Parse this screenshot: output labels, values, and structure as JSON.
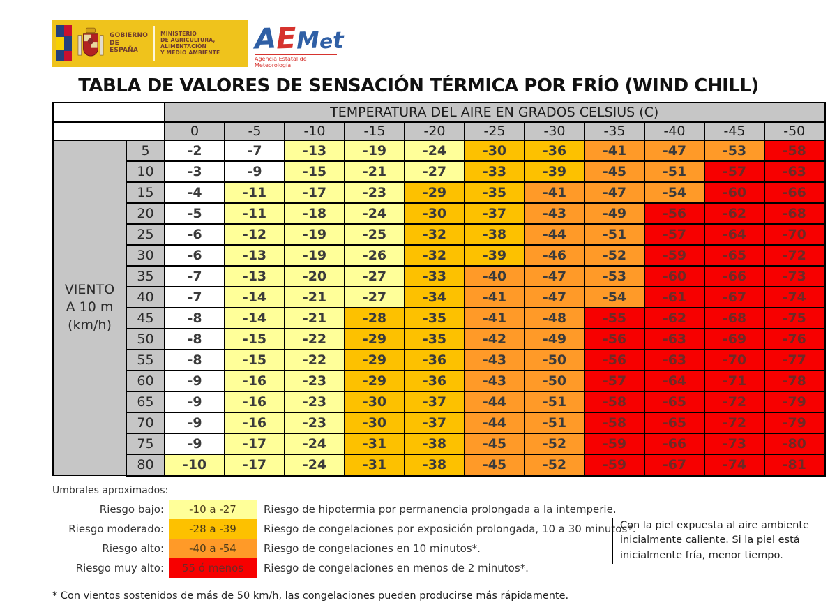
{
  "branding": {
    "gobierno_line1": "GOBIERNO",
    "gobierno_line2": "DE ESPAÑA",
    "ministerio_line1": "MINISTERIO",
    "ministerio_line2": "DE AGRICULTURA, ALIMENTACIÓN",
    "ministerio_line3": "Y MEDIO AMBIENTE",
    "aemet_letters": [
      "A",
      "E",
      "M",
      "e",
      "t"
    ],
    "aemet_letter_colors": [
      "#2f5fa5",
      "#d6332e",
      "#2f5fa5",
      "#2f5fa5",
      "#2f5fa5"
    ],
    "aemet_subtitle": "Agencia Estatal de Meteorología",
    "logo_background": "#EFC31C"
  },
  "title": "TABLA DE VALORES DE SENSACIÓN TÉRMICA POR FRÍO (WIND CHILL)",
  "chart_data": {
    "type": "table",
    "title": "TABLA DE VALORES DE SENSACIÓN TÉRMICA POR FRÍO (WIND CHILL)",
    "column_header": "TEMPERATURA DEL AIRE EN GRADOS CELSIUS (C)",
    "row_header_lines": [
      "VIENTO",
      "A 10 m",
      "(km/h)"
    ],
    "temperatures_c": [
      0,
      -5,
      -10,
      -15,
      -20,
      -25,
      -30,
      -35,
      -40,
      -45,
      -50
    ],
    "wind_speeds_kmh": [
      5,
      10,
      15,
      20,
      25,
      30,
      35,
      40,
      45,
      50,
      55,
      60,
      65,
      70,
      75,
      80
    ],
    "values": [
      [
        -2,
        -7,
        -13,
        -19,
        -24,
        -30,
        -36,
        -41,
        -47,
        -53,
        -58
      ],
      [
        -3,
        -9,
        -15,
        -21,
        -27,
        -33,
        -39,
        -45,
        -51,
        -57,
        -63
      ],
      [
        -4,
        -11,
        -17,
        -23,
        -29,
        -35,
        -41,
        -47,
        -54,
        -60,
        -66
      ],
      [
        -5,
        -11,
        -18,
        -24,
        -30,
        -37,
        -43,
        -49,
        -56,
        -62,
        -68
      ],
      [
        -6,
        -12,
        -19,
        -25,
        -32,
        -38,
        -44,
        -51,
        -57,
        -64,
        -70
      ],
      [
        -6,
        -13,
        -19,
        -26,
        -32,
        -39,
        -46,
        -52,
        -59,
        -65,
        -72
      ],
      [
        -7,
        -13,
        -20,
        -27,
        -33,
        -40,
        -47,
        -53,
        -60,
        -66,
        -73
      ],
      [
        -7,
        -14,
        -21,
        -27,
        -34,
        -41,
        -47,
        -54,
        -61,
        -67,
        -74
      ],
      [
        -8,
        -14,
        -21,
        -28,
        -35,
        -41,
        -48,
        -55,
        -62,
        -68,
        -75
      ],
      [
        -8,
        -15,
        -22,
        -29,
        -35,
        -42,
        -49,
        -56,
        -63,
        -69,
        -76
      ],
      [
        -8,
        -15,
        -22,
        -29,
        -36,
        -43,
        -50,
        -56,
        -63,
        -70,
        -77
      ],
      [
        -9,
        -16,
        -23,
        -29,
        -36,
        -43,
        -50,
        -57,
        -64,
        -71,
        -78
      ],
      [
        -9,
        -16,
        -23,
        -30,
        -37,
        -44,
        -51,
        -58,
        -65,
        -72,
        -79
      ],
      [
        -9,
        -16,
        -23,
        -30,
        -37,
        -44,
        -51,
        -58,
        -65,
        -72,
        -79
      ],
      [
        -9,
        -17,
        -24,
        -31,
        -38,
        -45,
        -52,
        -59,
        -66,
        -73,
        -80
      ],
      [
        -10,
        -17,
        -24,
        -31,
        -38,
        -45,
        -52,
        -59,
        -67,
        -74,
        -81
      ]
    ],
    "cell_color_rules": [
      {
        "min": -9,
        "color": "#FFFFFF"
      },
      {
        "min": -27,
        "color": "#FFFF99"
      },
      {
        "min": -39,
        "color": "#FDC100"
      },
      {
        "min": -54,
        "color": "#FF9A28"
      },
      {
        "min": -999,
        "color": "#F70000",
        "text": "#6e2a26"
      }
    ],
    "header_background": "#C6C6C6"
  },
  "legend": {
    "heading": "Umbrales aproximados:",
    "items": [
      {
        "label": "Riesgo bajo:",
        "range": "-10 a -27",
        "color": "#FFFF99",
        "desc": "Riesgo de hipotermia por permanencia prolongada a la intemperie."
      },
      {
        "label": "Riesgo moderado:",
        "range": "-28 a -39",
        "color": "#FDC100",
        "desc": "Riesgo de congelaciones por exposición prolongada, 10 a 30 minutos*."
      },
      {
        "label": "Riesgo alto:",
        "range": "-40 a -54",
        "color": "#FF9A28",
        "desc": "Riesgo de congelaciones en 10 minutos*."
      },
      {
        "label": "Riesgo muy alto:",
        "range": "55 ó menos",
        "color": "#F70000",
        "text_color": "#6e2a26",
        "desc": "Riesgo de congelaciones en menos de 2 minutos*."
      }
    ],
    "side_note_lines": [
      "Con la piel expuesta al aire ambiente",
      "inicialmente caliente. Si la piel está",
      "inicialmente fría, menor tiempo."
    ]
  },
  "footnote": "* Con vientos sostenidos de más de 50 km/h, las congelaciones pueden producirse más rápidamente."
}
